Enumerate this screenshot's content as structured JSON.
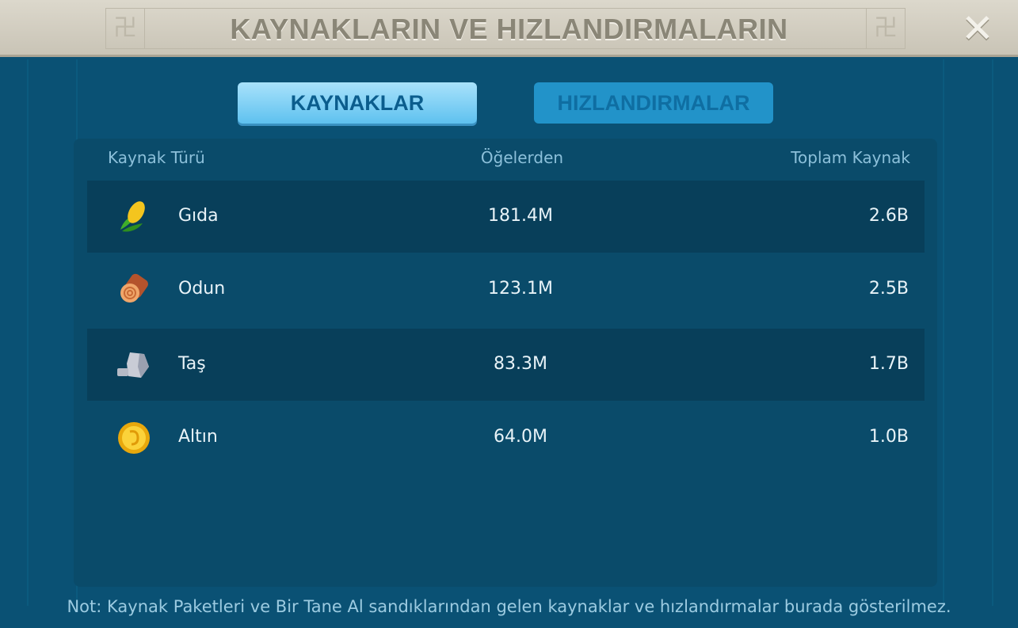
{
  "header": {
    "title": "KAYNAKLARIN VE HIZLANDIRMALARIN",
    "close_icon": "close-icon"
  },
  "tabs": [
    {
      "label": "KAYNAKLAR",
      "active": true
    },
    {
      "label": "HIZLANDIRMALAR",
      "active": false
    }
  ],
  "table": {
    "columns": [
      "Kaynak Türü",
      "Öğelerden",
      "Toplam Kaynak"
    ],
    "rows": [
      {
        "icon": "corn-icon",
        "name": "Gıda",
        "items": "181.4M",
        "total": "2.6B"
      },
      {
        "icon": "wood-log-icon",
        "name": "Odun",
        "items": "123.1M",
        "total": "2.5B"
      },
      {
        "icon": "stone-icon",
        "name": "Taş",
        "items": "83.3M",
        "total": "1.7B"
      },
      {
        "icon": "gold-coin-icon",
        "name": "Altın",
        "items": "64.0M",
        "total": "1.0B"
      }
    ]
  },
  "note": "Not: Kaynak Paketleri ve Bir Tane Al sandıklarından gelen kaynaklar ve hızlandırmalar burada gösterilmez."
}
